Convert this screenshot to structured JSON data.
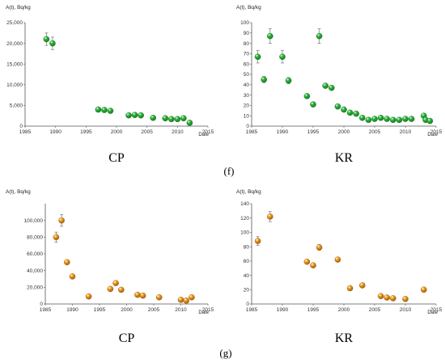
{
  "panel_labels": {
    "f": "(f)",
    "g": "(g)"
  },
  "chart_data": [
    {
      "type": "scatter",
      "panel": "f",
      "position": "left",
      "subtitle": "CP",
      "ylabel": "A(t), Bq/kg",
      "xlabel": "Date",
      "xlim": [
        1985,
        2015
      ],
      "ylim": [
        0,
        25000
      ],
      "xticks": [
        1985,
        1990,
        1995,
        2000,
        2005,
        2010,
        2015
      ],
      "xtick_labels": [
        "1985",
        "1990",
        "1995",
        "2000",
        "2005",
        "2010",
        "2015"
      ],
      "yticks": [
        0,
        5000,
        10000,
        15000,
        20000,
        25000
      ],
      "ytick_labels": [
        "0",
        "5,000",
        "10,000",
        "15,000",
        "20,000",
        "25,000"
      ],
      "color": "#2db83a",
      "stroke": "#1b7a25",
      "grid": false,
      "legend": "none",
      "points": [
        {
          "x": 1988.5,
          "y": 21000,
          "err": 1500
        },
        {
          "x": 1989.5,
          "y": 20000,
          "err": 1500
        },
        {
          "x": 1997,
          "y": 4000
        },
        {
          "x": 1998,
          "y": 3900
        },
        {
          "x": 1999,
          "y": 3700
        },
        {
          "x": 2002,
          "y": 2600
        },
        {
          "x": 2003,
          "y": 2700
        },
        {
          "x": 2004,
          "y": 2600
        },
        {
          "x": 2006,
          "y": 2000
        },
        {
          "x": 2008,
          "y": 1900
        },
        {
          "x": 2009,
          "y": 1700
        },
        {
          "x": 2010,
          "y": 1700
        },
        {
          "x": 2011,
          "y": 1900
        },
        {
          "x": 2012,
          "y": 800
        }
      ]
    },
    {
      "type": "scatter",
      "panel": "f",
      "position": "right",
      "subtitle": "KR",
      "ylabel": "A(t), Bq/kg",
      "xlabel": "Date",
      "xlim": [
        1985,
        2015
      ],
      "ylim": [
        0,
        100
      ],
      "xticks": [
        1985,
        1990,
        1995,
        2000,
        2005,
        2010,
        2015
      ],
      "xtick_labels": [
        "1985",
        "1990",
        "1995",
        "2000",
        "2005",
        "2010",
        "2015"
      ],
      "yticks": [
        0,
        10,
        20,
        30,
        40,
        50,
        60,
        70,
        80,
        90,
        100
      ],
      "ytick_labels": [
        "0",
        "10",
        "20",
        "30",
        "40",
        "50",
        "60",
        "70",
        "80",
        "90",
        "100"
      ],
      "color": "#2db83a",
      "stroke": "#1b7a25",
      "grid": false,
      "legend": "none",
      "points": [
        {
          "x": 1986,
          "y": 67,
          "err": 6
        },
        {
          "x": 1987,
          "y": 45,
          "err": 3
        },
        {
          "x": 1988,
          "y": 87,
          "err": 7
        },
        {
          "x": 1990,
          "y": 67,
          "err": 6
        },
        {
          "x": 1991,
          "y": 44,
          "err": 3
        },
        {
          "x": 1994,
          "y": 29
        },
        {
          "x": 1995,
          "y": 21
        },
        {
          "x": 1996,
          "y": 87,
          "err": 7
        },
        {
          "x": 1997,
          "y": 39
        },
        {
          "x": 1998,
          "y": 37
        },
        {
          "x": 1999,
          "y": 19
        },
        {
          "x": 2000,
          "y": 16
        },
        {
          "x": 2001,
          "y": 13
        },
        {
          "x": 2002,
          "y": 12
        },
        {
          "x": 2003,
          "y": 8
        },
        {
          "x": 2004,
          "y": 6
        },
        {
          "x": 2005,
          "y": 7
        },
        {
          "x": 2006,
          "y": 8
        },
        {
          "x": 2007,
          "y": 7
        },
        {
          "x": 2008,
          "y": 6
        },
        {
          "x": 2009,
          "y": 6
        },
        {
          "x": 2010,
          "y": 7
        },
        {
          "x": 2011,
          "y": 7
        },
        {
          "x": 2013,
          "y": 10
        },
        {
          "x": 2013.3,
          "y": 6
        },
        {
          "x": 2014,
          "y": 5
        }
      ]
    },
    {
      "type": "scatter",
      "panel": "g",
      "position": "left",
      "subtitle": "CP",
      "ylabel": "A(t), Bq/kg",
      "xlabel": "Date",
      "xlim": [
        1985,
        2015
      ],
      "ylim": [
        0,
        120000
      ],
      "xticks": [
        1985,
        1990,
        1995,
        2000,
        2005,
        2010,
        2015
      ],
      "xtick_labels": [
        "1985",
        "1990",
        "1995",
        "2000",
        "2005",
        "2010",
        "2015"
      ],
      "yticks": [
        0,
        20000,
        40000,
        60000,
        80000,
        100000
      ],
      "ytick_labels": [
        "0",
        "20,000",
        "40,000",
        "60,000",
        "80,000",
        "100,000"
      ],
      "color": "#f0a020",
      "stroke": "#a06010",
      "grid": false,
      "legend": "none",
      "points": [
        {
          "x": 1987,
          "y": 80000,
          "err": 6000
        },
        {
          "x": 1988,
          "y": 100000,
          "err": 7000
        },
        {
          "x": 1989,
          "y": 50000
        },
        {
          "x": 1990,
          "y": 33000
        },
        {
          "x": 1993,
          "y": 9000
        },
        {
          "x": 1997,
          "y": 18000
        },
        {
          "x": 1998,
          "y": 25000
        },
        {
          "x": 1999,
          "y": 17000
        },
        {
          "x": 2002,
          "y": 11000
        },
        {
          "x": 2003,
          "y": 10000
        },
        {
          "x": 2006,
          "y": 8000
        },
        {
          "x": 2010,
          "y": 5000
        },
        {
          "x": 2011,
          "y": 4000
        },
        {
          "x": 2012,
          "y": 8000
        }
      ]
    },
    {
      "type": "scatter",
      "panel": "g",
      "position": "right",
      "subtitle": "KR",
      "ylabel": "A(t), Bq/kg",
      "xlabel": "Date",
      "xlim": [
        1985,
        2015
      ],
      "ylim": [
        0,
        140
      ],
      "xticks": [
        1985,
        1990,
        1995,
        2000,
        2005,
        2010,
        2015
      ],
      "xtick_labels": [
        "1985",
        "1990",
        "1995",
        "2000",
        "2005",
        "2010",
        "2015"
      ],
      "yticks": [
        0,
        20,
        40,
        60,
        80,
        100,
        120,
        140
      ],
      "ytick_labels": [
        "0",
        "20",
        "40",
        "60",
        "80",
        "100",
        "120",
        "140"
      ],
      "color": "#f0a020",
      "stroke": "#a06010",
      "grid": false,
      "legend": "none",
      "points": [
        {
          "x": 1986,
          "y": 88,
          "err": 6
        },
        {
          "x": 1988,
          "y": 122,
          "err": 7
        },
        {
          "x": 1994,
          "y": 59
        },
        {
          "x": 1995,
          "y": 54
        },
        {
          "x": 1996,
          "y": 79,
          "err": 4
        },
        {
          "x": 1999,
          "y": 62
        },
        {
          "x": 2001,
          "y": 22
        },
        {
          "x": 2003,
          "y": 26
        },
        {
          "x": 2006,
          "y": 11
        },
        {
          "x": 2007,
          "y": 9
        },
        {
          "x": 2008,
          "y": 8
        },
        {
          "x": 2010,
          "y": 7
        },
        {
          "x": 2013,
          "y": 20
        }
      ]
    }
  ]
}
